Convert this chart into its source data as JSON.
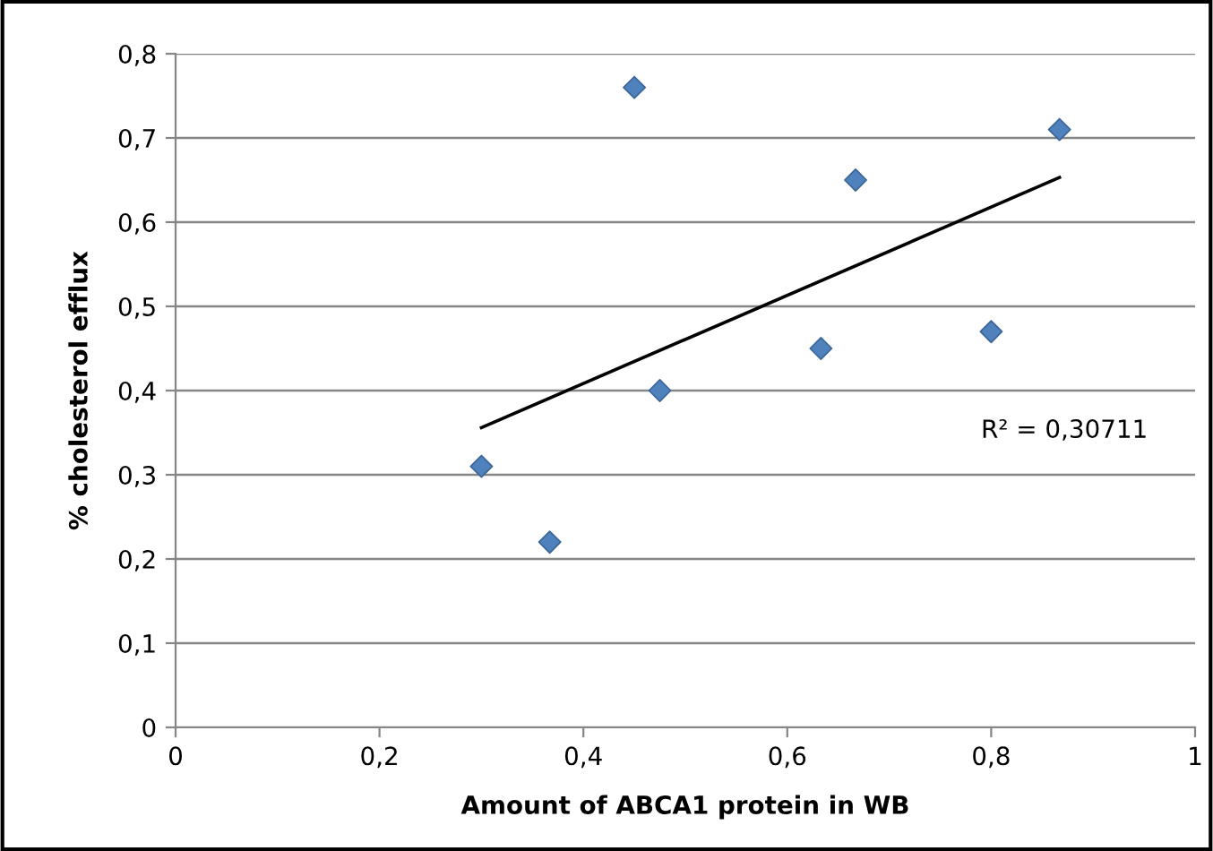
{
  "chart_data": {
    "type": "scatter",
    "xlabel": "Amount of ABCA1 protein in WB",
    "ylabel": "% cholesterol efflux",
    "series": [
      {
        "color": "#4f81bd",
        "marker": "diamond",
        "x": [
          0.3,
          0.367,
          0.45,
          0.475,
          0.633,
          0.667,
          0.8,
          0.867
        ],
        "values": [
          0.31,
          0.22,
          0.76,
          0.4,
          0.45,
          0.65,
          0.47,
          0.71
        ]
      },
      {
        "type": "line",
        "color": "#000000",
        "marker": "none",
        "x": [
          0.3,
          0.867
        ],
        "values": [
          0.356,
          0.653
        ]
      }
    ],
    "annotations": [
      "R² = 0,30711"
    ],
    "xlim": [
      0,
      1
    ],
    "ylim": [
      0,
      0.8
    ],
    "xticks": [
      0,
      {
        "value": 0.2,
        "label": "0,2"
      },
      {
        "value": 0.4,
        "label": "0,4"
      },
      {
        "value": 0.6,
        "label": "0,6"
      },
      {
        "value": 0.8,
        "label": "0,8"
      },
      1
    ],
    "yticks": [
      0,
      {
        "value": 0.1,
        "label": "0,1"
      },
      {
        "value": 0.2,
        "label": "0,2"
      },
      {
        "value": 0.3,
        "label": "0,3"
      },
      {
        "value": 0.4,
        "label": "0,4"
      },
      {
        "value": 0.5,
        "label": "0,5"
      },
      {
        "value": 0.6,
        "label": "0,6"
      },
      {
        "value": 0.7,
        "label": "0,7"
      },
      {
        "value": 0.8,
        "label": "0,8"
      }
    ],
    "grid": "y",
    "legend": false
  }
}
